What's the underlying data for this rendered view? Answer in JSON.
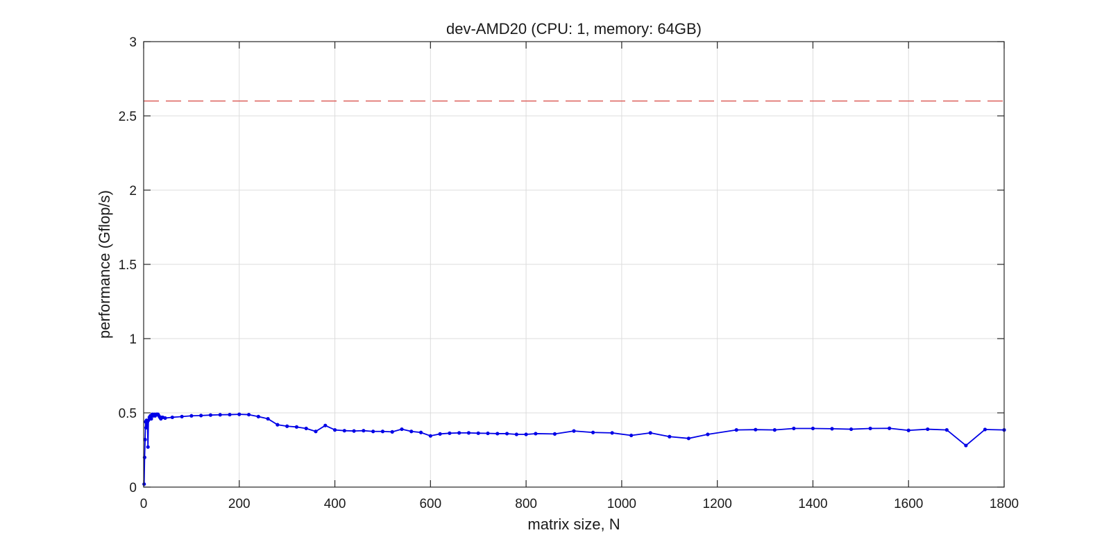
{
  "chart_data": {
    "type": "line",
    "title": "dev-AMD20 (CPU: 1, memory: 64GB)",
    "xlabel": "matrix size, N",
    "ylabel": "performance (Gflop/s)",
    "xlim": [
      0,
      1800
    ],
    "ylim": [
      0,
      3
    ],
    "xticks": [
      0,
      200,
      400,
      600,
      800,
      1000,
      1200,
      1400,
      1600,
      1800
    ],
    "yticks": [
      0,
      0.5,
      1,
      1.5,
      2,
      2.5,
      3
    ],
    "xtick_labels": [
      "0",
      "200",
      "400",
      "600",
      "800",
      "1000",
      "1200",
      "1400",
      "1600",
      "1800"
    ],
    "ytick_labels": [
      "0",
      "0.5",
      "1",
      "1.5",
      "2",
      "2.5",
      "3"
    ],
    "grid": true,
    "reference_line": {
      "y": 2.6,
      "color": "#d9534f",
      "style": "dashed"
    },
    "series": [
      {
        "color": "#0000e6",
        "marker": "dot",
        "x": [
          1,
          2,
          3,
          4,
          5,
          6,
          7,
          8,
          9,
          10,
          12,
          14,
          16,
          18,
          20,
          22,
          24,
          26,
          28,
          30,
          32,
          34,
          36,
          38,
          40,
          45,
          60,
          80,
          100,
          120,
          140,
          160,
          180,
          200,
          220,
          240,
          260,
          280,
          300,
          320,
          340,
          360,
          380,
          400,
          420,
          440,
          460,
          480,
          500,
          520,
          540,
          560,
          580,
          600,
          620,
          640,
          660,
          680,
          700,
          720,
          740,
          760,
          780,
          800,
          820,
          860,
          900,
          940,
          980,
          1020,
          1060,
          1100,
          1140,
          1180,
          1240,
          1280,
          1320,
          1360,
          1400,
          1440,
          1480,
          1520,
          1560,
          1600,
          1640,
          1680,
          1720,
          1760,
          1800
        ],
        "y": [
          0.02,
          0.2,
          0.32,
          0.44,
          0.4,
          0.45,
          0.42,
          0.44,
          0.27,
          0.45,
          0.47,
          0.48,
          0.46,
          0.49,
          0.48,
          0.49,
          0.48,
          0.49,
          0.49,
          0.49,
          0.48,
          0.47,
          0.46,
          0.47,
          0.47,
          0.465,
          0.47,
          0.475,
          0.48,
          0.482,
          0.485,
          0.487,
          0.488,
          0.49,
          0.488,
          0.475,
          0.46,
          0.42,
          0.41,
          0.405,
          0.395,
          0.375,
          0.415,
          0.385,
          0.38,
          0.378,
          0.38,
          0.375,
          0.375,
          0.372,
          0.39,
          0.375,
          0.368,
          0.345,
          0.358,
          0.363,
          0.365,
          0.365,
          0.363,
          0.362,
          0.36,
          0.36,
          0.355,
          0.355,
          0.36,
          0.358,
          0.378,
          0.368,
          0.365,
          0.348,
          0.365,
          0.34,
          0.328,
          0.355,
          0.385,
          0.387,
          0.385,
          0.395,
          0.395,
          0.393,
          0.39,
          0.395,
          0.396,
          0.382,
          0.39,
          0.385,
          0.28,
          0.388,
          0.385
        ]
      }
    ]
  }
}
